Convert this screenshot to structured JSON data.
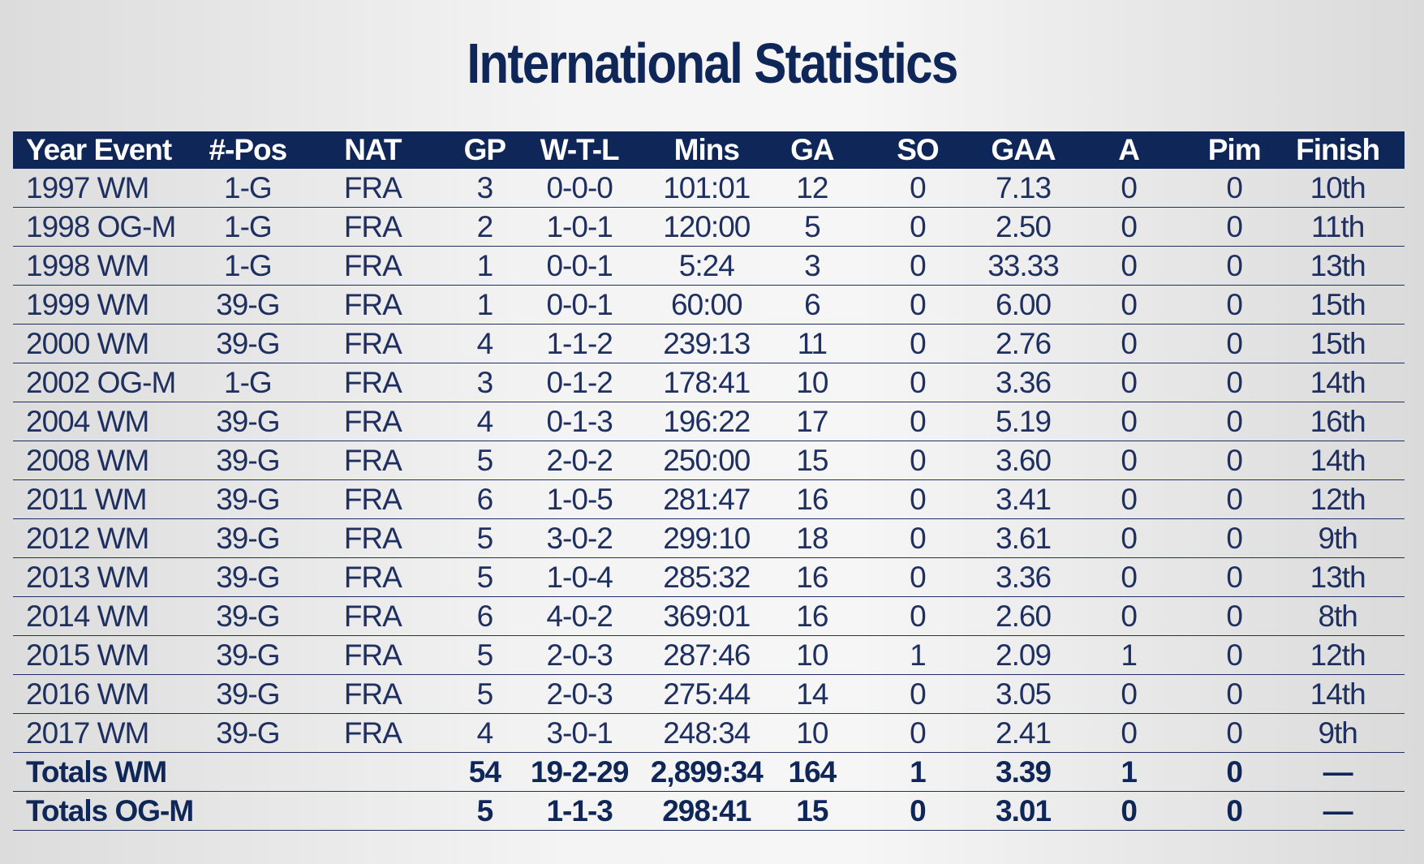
{
  "title": "International Statistics",
  "columns": [
    "Year Event",
    "#-Pos",
    "NAT",
    "GP",
    "W-T-L",
    "Mins",
    "GA",
    "SO",
    "GAA",
    "A",
    "Pim",
    "Finish"
  ],
  "rows": [
    [
      "1997 WM",
      "1-G",
      "FRA",
      "3",
      "0-0-0",
      "101:01",
      "12",
      "0",
      "7.13",
      "0",
      "0",
      "10th"
    ],
    [
      "1998 OG-M",
      "1-G",
      "FRA",
      "2",
      "1-0-1",
      "120:00",
      "5",
      "0",
      "2.50",
      "0",
      "0",
      "11th"
    ],
    [
      "1998 WM",
      "1-G",
      "FRA",
      "1",
      "0-0-1",
      "5:24",
      "3",
      "0",
      "33.33",
      "0",
      "0",
      "13th"
    ],
    [
      "1999 WM",
      "39-G",
      "FRA",
      "1",
      "0-0-1",
      "60:00",
      "6",
      "0",
      "6.00",
      "0",
      "0",
      "15th"
    ],
    [
      "2000 WM",
      "39-G",
      "FRA",
      "4",
      "1-1-2",
      "239:13",
      "11",
      "0",
      "2.76",
      "0",
      "0",
      "15th"
    ],
    [
      "2002 OG-M",
      "1-G",
      "FRA",
      "3",
      "0-1-2",
      "178:41",
      "10",
      "0",
      "3.36",
      "0",
      "0",
      "14th"
    ],
    [
      "2004 WM",
      "39-G",
      "FRA",
      "4",
      "0-1-3",
      "196:22",
      "17",
      "0",
      "5.19",
      "0",
      "0",
      "16th"
    ],
    [
      "2008 WM",
      "39-G",
      "FRA",
      "5",
      "2-0-2",
      "250:00",
      "15",
      "0",
      "3.60",
      "0",
      "0",
      "14th"
    ],
    [
      "2011 WM",
      "39-G",
      "FRA",
      "6",
      "1-0-5",
      "281:47",
      "16",
      "0",
      "3.41",
      "0",
      "0",
      "12th"
    ],
    [
      "2012 WM",
      "39-G",
      "FRA",
      "5",
      "3-0-2",
      "299:10",
      "18",
      "0",
      "3.61",
      "0",
      "0",
      "9th"
    ],
    [
      "2013 WM",
      "39-G",
      "FRA",
      "5",
      "1-0-4",
      "285:32",
      "16",
      "0",
      "3.36",
      "0",
      "0",
      "13th"
    ],
    [
      "2014 WM",
      "39-G",
      "FRA",
      "6",
      "4-0-2",
      "369:01",
      "16",
      "0",
      "2.60",
      "0",
      "0",
      "8th"
    ],
    [
      "2015 WM",
      "39-G",
      "FRA",
      "5",
      "2-0-3",
      "287:46",
      "10",
      "1",
      "2.09",
      "1",
      "0",
      "12th"
    ],
    [
      "2016 WM",
      "39-G",
      "FRA",
      "5",
      "2-0-3",
      "275:44",
      "14",
      "0",
      "3.05",
      "0",
      "0",
      "14th"
    ],
    [
      "2017 WM",
      "39-G",
      "FRA",
      "4",
      "3-0-1",
      "248:34",
      "10",
      "0",
      "2.41",
      "0",
      "0",
      "9th"
    ]
  ],
  "totals": [
    [
      "Totals WM",
      "",
      "",
      "54",
      "19-2-29",
      "2,899:34",
      "164",
      "1",
      "3.39",
      "1",
      "0",
      "—"
    ],
    [
      "Totals OG-M",
      "",
      "",
      "5",
      "1-1-3",
      "298:41",
      "15",
      "0",
      "3.01",
      "0",
      "0",
      "—"
    ]
  ],
  "colors": {
    "header_bg": "#0f2659",
    "header_text": "#ffffff",
    "body_text": "#1f3060",
    "rule": "#1f3060"
  }
}
